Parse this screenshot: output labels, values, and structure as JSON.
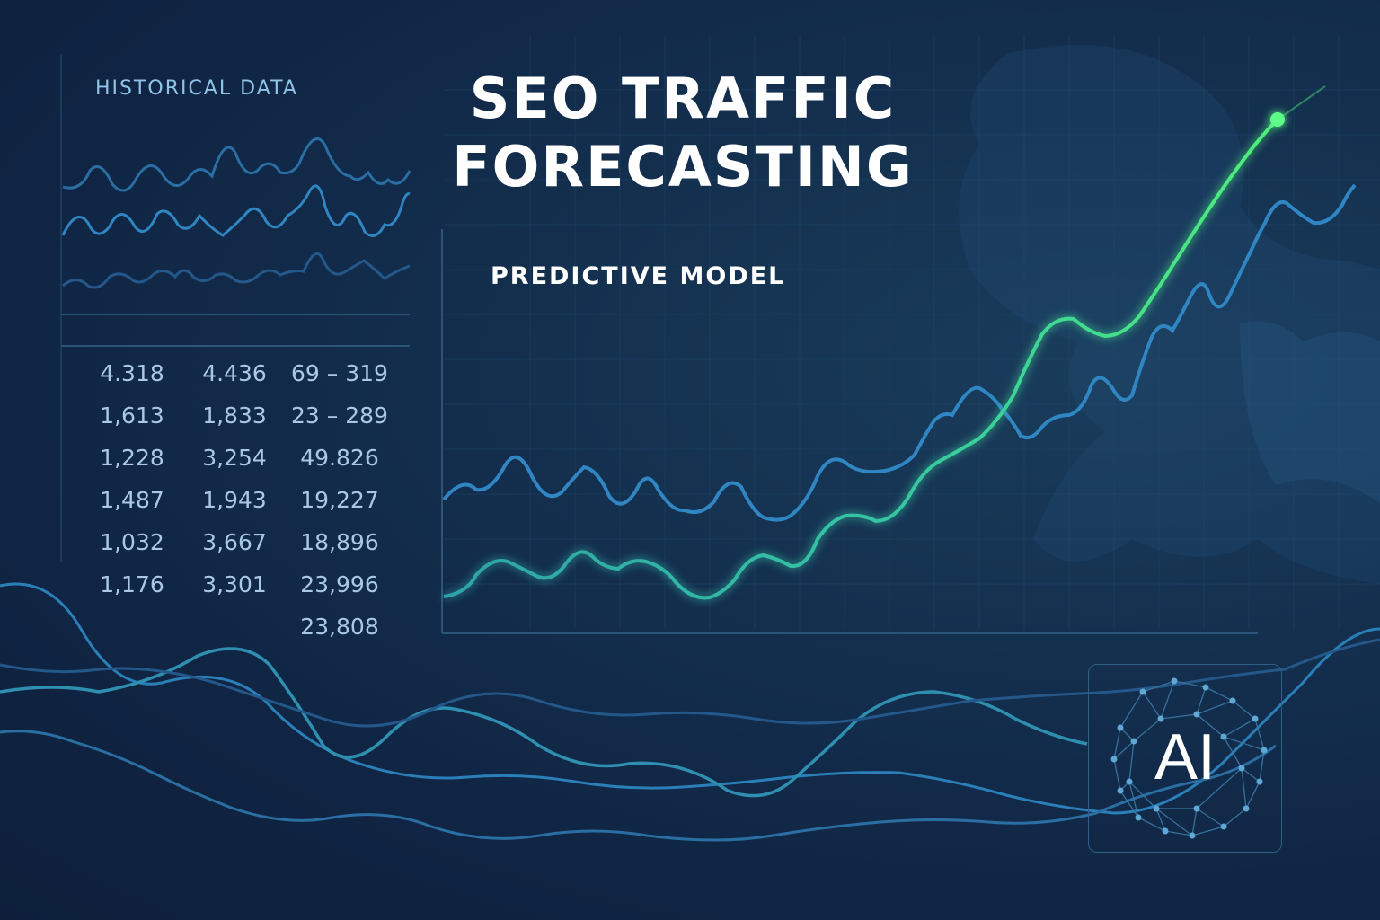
{
  "title_line1": "SEO TRAFFIC",
  "title_line2": "FORECASTING",
  "historical_label": "HISTORICAL DATA",
  "predictive_label": "PREDICTIVE MODEL",
  "ai_badge": "AI",
  "table_rows": [
    [
      "4.318",
      "4.436",
      "69 – 319"
    ],
    [
      "1,613",
      "1,833",
      "23 – 289"
    ],
    [
      "1,228",
      "3,254",
      "49.826"
    ],
    [
      "1,487",
      "1,943",
      "19,227"
    ],
    [
      "1,032",
      "3,667",
      "18,896"
    ],
    [
      "1,176",
      "3,301",
      "23,996"
    ],
    [
      "",
      "",
      "23,808"
    ]
  ],
  "colors": {
    "background": "#102544",
    "line_blue": "#2f86c2",
    "line_green": "#3fe38c",
    "grid": "#1f4266"
  }
}
